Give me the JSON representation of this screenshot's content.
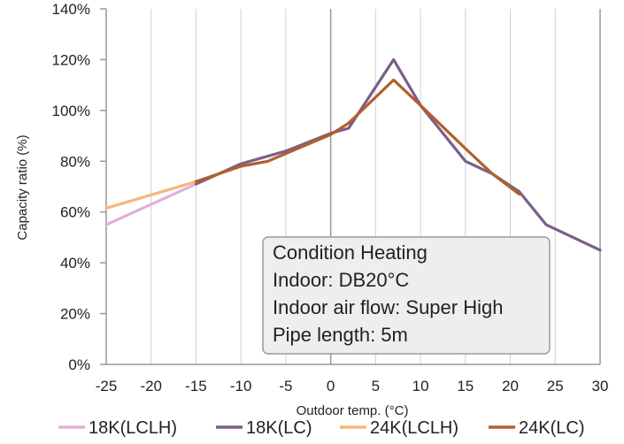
{
  "chart_data": {
    "type": "line",
    "xlabel": "Outdoor temp. (°C)",
    "ylabel": "Capacity ratio (%)",
    "xlim": [
      -25,
      30
    ],
    "ylim": [
      0,
      140
    ],
    "x_ticks": [
      "-25",
      "-20",
      "-15",
      "-10",
      "-5",
      "0",
      "5",
      "10",
      "15",
      "20",
      "25",
      "30"
    ],
    "y_ticks": [
      "0%",
      "20%",
      "40%",
      "60%",
      "80%",
      "100%",
      "120%",
      "140%"
    ],
    "grid": "vertical",
    "legend_position": "bottom",
    "series": [
      {
        "name": "18K(LCLH)",
        "color": "#e0b0d8",
        "points": [
          [
            -25,
            55
          ],
          [
            -15,
            71
          ]
        ]
      },
      {
        "name": "18K(LC)",
        "color": "#7b5f86",
        "points": [
          [
            -15,
            71
          ],
          [
            -10,
            79
          ],
          [
            -5,
            84
          ],
          [
            0,
            91
          ],
          [
            2,
            93
          ],
          [
            7,
            120
          ],
          [
            10,
            102
          ],
          [
            15,
            80
          ],
          [
            18,
            75
          ],
          [
            21,
            68
          ],
          [
            24,
            55
          ],
          [
            30,
            45
          ]
        ]
      },
      {
        "name": "24K(LCLH)",
        "color": "#f5b878",
        "points": [
          [
            -25,
            61.5
          ],
          [
            -15,
            72
          ]
        ]
      },
      {
        "name": "24K(LC)",
        "color": "#b0602d",
        "points": [
          [
            -15,
            72
          ],
          [
            -10,
            78
          ],
          [
            -7,
            80
          ],
          [
            0,
            90.5
          ],
          [
            2,
            95
          ],
          [
            7,
            112
          ],
          [
            10,
            102
          ],
          [
            15,
            85
          ],
          [
            18,
            75
          ],
          [
            21,
            67
          ]
        ]
      }
    ],
    "annotation": {
      "lines": [
        "Condition Heating",
        "Indoor: DB20°C",
        "Indoor air flow: Super High",
        "Pipe length: 5m"
      ]
    }
  }
}
